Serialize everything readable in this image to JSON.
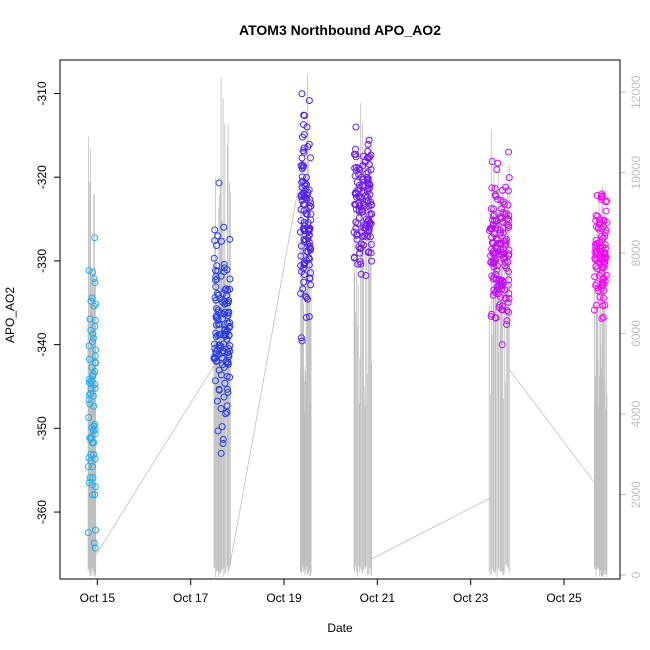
{
  "chart_data": {
    "type": "scatter",
    "title": "ATOM3 Northbound APO_AO2",
    "xlabel": "Date",
    "ylabel": "APO_AO2",
    "xlim": [
      14.2,
      26.2
    ],
    "ylim": [
      -368,
      -306
    ],
    "y2lim": [
      -100,
      12800
    ],
    "x_ticks": [
      {
        "value": 15,
        "label": "Oct 15"
      },
      {
        "value": 17,
        "label": "Oct 17"
      },
      {
        "value": 19,
        "label": "Oct 19"
      },
      {
        "value": 21,
        "label": "Oct 21"
      },
      {
        "value": 23,
        "label": "Oct 23"
      },
      {
        "value": 25,
        "label": "Oct 25"
      }
    ],
    "y_ticks": [
      -360,
      -350,
      -340,
      -330,
      -320,
      -310
    ],
    "y2_ticks": [
      0,
      2000,
      4000,
      6000,
      8000,
      10000,
      12000
    ],
    "point_color_scale": {
      "start": "#20b2f0",
      "end": "#ff00ff",
      "note": "color by date, cyan to magenta"
    },
    "secondary_series_color": "#bebebe",
    "clusters": [
      {
        "x_start": 14.8,
        "x_end": 14.97,
        "y_min": -367,
        "y_max": -322,
        "y_center": -347,
        "n": 70,
        "alt_max": 11800
      },
      {
        "x_start": 17.5,
        "x_end": 17.85,
        "y_min": -353,
        "y_max": -320,
        "y_center": -338,
        "n": 130,
        "alt_max": 12400
      },
      {
        "x_start": 19.35,
        "x_end": 19.58,
        "y_min": -340,
        "y_max": -308,
        "y_center": -325,
        "n": 110,
        "alt_max": 12600
      },
      {
        "x_start": 20.5,
        "x_end": 20.88,
        "y_min": -336,
        "y_max": -314,
        "y_center": -324,
        "n": 130,
        "alt_max": 12100
      },
      {
        "x_start": 23.4,
        "x_end": 23.83,
        "y_min": -344,
        "y_max": -317,
        "y_center": -329,
        "n": 150,
        "alt_max": 11800
      },
      {
        "x_start": 25.65,
        "x_end": 25.92,
        "y_min": -337,
        "y_max": -318,
        "y_center": -329,
        "n": 100,
        "alt_max": 10200
      }
    ],
    "connectors": [
      {
        "x0": 14.97,
        "alt0": 500,
        "x1": 17.5,
        "alt1": 5200
      },
      {
        "x0": 17.85,
        "alt0": 300,
        "x1": 19.35,
        "alt1": 9900
      },
      {
        "x0": 20.88,
        "alt0": 400,
        "x1": 23.4,
        "alt1": 1900
      },
      {
        "x0": 23.83,
        "alt0": 5100,
        "x1": 25.65,
        "alt1": 2300
      }
    ]
  }
}
